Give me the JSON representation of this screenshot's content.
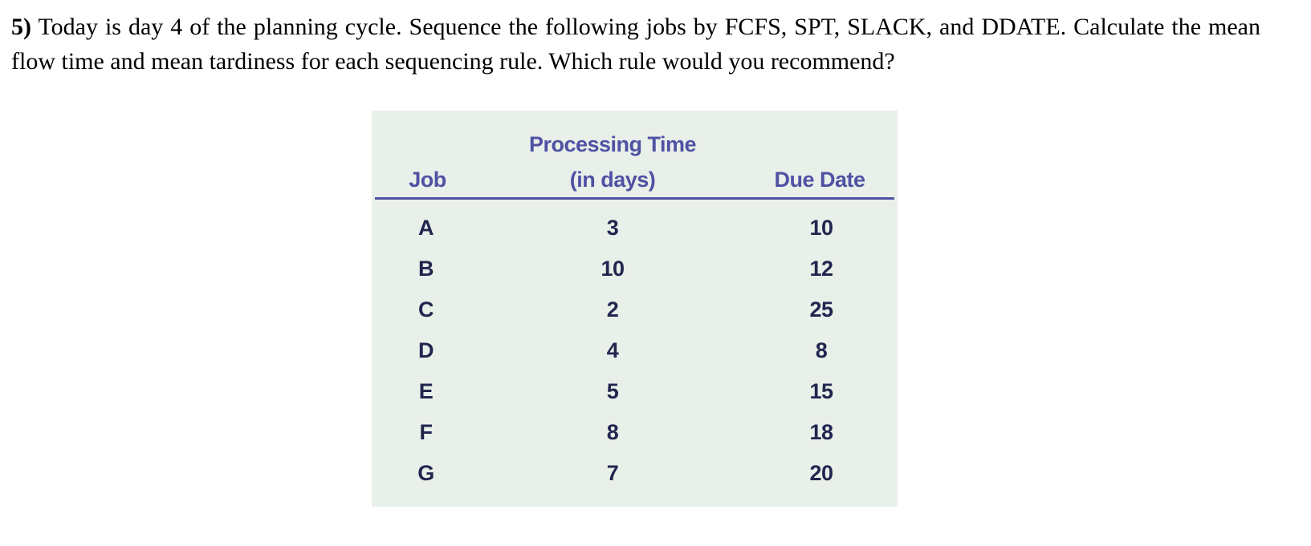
{
  "problem": {
    "number": "5)",
    "text": "Today is day 4 of the planning cycle. Sequence the following jobs by FCFS, SPT, SLACK, and DDATE. Calculate the mean flow time and mean tardiness for each sequencing rule. Which rule would you recommend?"
  },
  "table": {
    "headers": {
      "job": "Job",
      "processing_line1": "Processing Time",
      "processing_line2": "(in days)",
      "due_date": "Due Date"
    },
    "rows": [
      {
        "job": "A",
        "processing": "3",
        "due": "10"
      },
      {
        "job": "B",
        "processing": "10",
        "due": "12"
      },
      {
        "job": "C",
        "processing": "2",
        "due": "25"
      },
      {
        "job": "D",
        "processing": "4",
        "due": "8"
      },
      {
        "job": "E",
        "processing": "5",
        "due": "15"
      },
      {
        "job": "F",
        "processing": "8",
        "due": "18"
      },
      {
        "job": "G",
        "processing": "7",
        "due": "20"
      }
    ],
    "colors": {
      "header_text": "#4f51a3",
      "rule_line": "#4f51a3",
      "value_text": "#23254f",
      "table_background": "#e9efe9"
    }
  }
}
